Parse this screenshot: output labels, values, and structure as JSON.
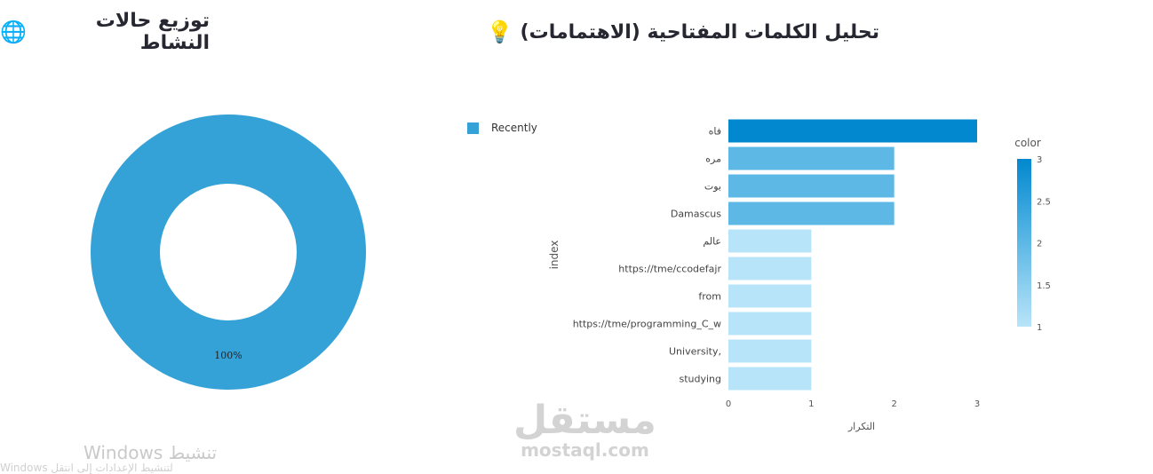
{
  "headers": {
    "left_title": "توزيع حالات النشاط",
    "left_icon": "globe-icon",
    "right_title": "تحليل الكلمات المفتاحية (الاهتمامات)",
    "right_icon": "lightbulb-icon"
  },
  "watermarks": {
    "windows_text": "تنشيط Windows",
    "windows_sub": "Windows لتنشيط الإعدادات إلى انتقل",
    "mostaql_ar": "مستقل",
    "mostaql_en": "mostaql.com"
  },
  "chart_data": [
    {
      "type": "pie",
      "hole": true,
      "labels": [
        "Recently"
      ],
      "values": [
        100
      ],
      "slice_labels": [
        "100%"
      ],
      "colors": [
        "#35a2d7"
      ],
      "legend": "top-right"
    },
    {
      "type": "bar",
      "orientation": "horizontal",
      "categories": [
        "فاه",
        "مره",
        "بوت",
        "Damascus",
        "عالم",
        "https://tme/ccodefajr",
        "from",
        "https://tme/programming_C_w",
        "University,",
        "studying"
      ],
      "values": [
        3,
        2,
        2,
        2,
        1,
        1,
        1,
        1,
        1,
        1
      ],
      "xlabel": "التكرار",
      "ylabel": "index",
      "xlim": [
        0,
        3
      ],
      "xticks": [
        "0",
        "1",
        "2",
        "3"
      ],
      "colorbar": {
        "title": "color",
        "range": [
          1,
          3
        ],
        "ticks": [
          "3",
          "2.5",
          "2",
          "1.5",
          "1"
        ],
        "colors": {
          "low": "#b8e4f9",
          "mid": "#5db8e6",
          "high": "#0288cf"
        }
      },
      "grid": false
    }
  ]
}
